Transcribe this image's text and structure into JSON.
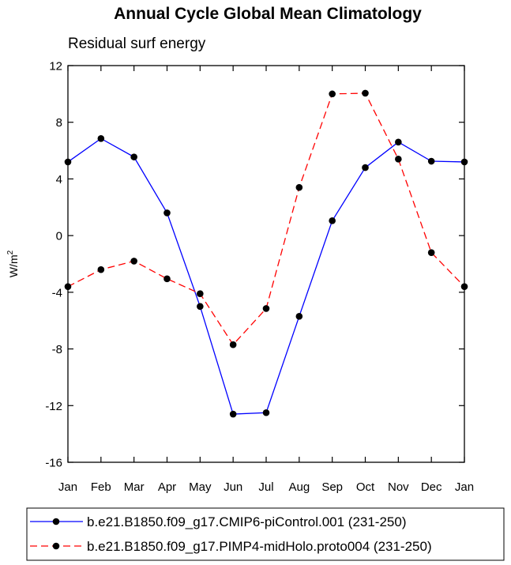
{
  "chart_data": {
    "type": "line",
    "title": "Annual Cycle Global Mean Climatology",
    "subtitle": "Residual surf energy",
    "xlabel": "",
    "ylabel": "W/m",
    "ylabel_sup": "2",
    "categories": [
      "Jan",
      "Feb",
      "Mar",
      "Apr",
      "May",
      "Jun",
      "Jul",
      "Aug",
      "Sep",
      "Oct",
      "Nov",
      "Dec",
      "Jan"
    ],
    "ylim": [
      -16,
      12
    ],
    "yticks": [
      -16,
      -12,
      -8,
      -4,
      0,
      4,
      8,
      12
    ],
    "ytick_labels": [
      "-16",
      "-12",
      "-8",
      "-4",
      "0",
      "4",
      "8",
      "12"
    ],
    "series": [
      {
        "name": "b.e21.B1850.f09_g17.CMIP6-piControl.001 (231-250)",
        "color": "#0000ff",
        "dashed": false,
        "values": [
          5.2,
          6.85,
          5.55,
          1.6,
          -5.0,
          -12.6,
          -12.5,
          -5.7,
          1.05,
          4.8,
          6.6,
          5.25,
          5.2
        ]
      },
      {
        "name": "b.e21.B1850.f09_g17.PIMP4-midHolo.proto004 (231-250)",
        "color": "#ff0000",
        "dashed": true,
        "values": [
          -3.6,
          -2.4,
          -1.8,
          -3.05,
          -4.1,
          -7.7,
          -5.15,
          3.4,
          10.0,
          10.05,
          5.4,
          -1.2,
          -3.6
        ]
      }
    ]
  }
}
